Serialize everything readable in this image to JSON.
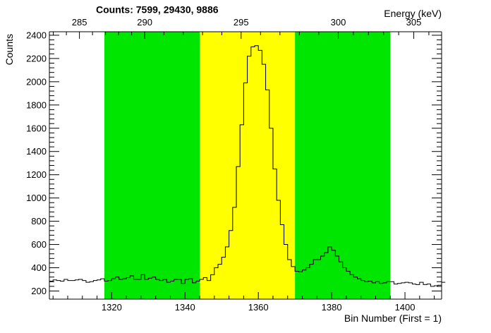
{
  "chart_data": {
    "type": "histogram",
    "title": "Counts:   7599,   29430,   9886",
    "xlabel": "Bin Number (First = 1)",
    "ylabel": "Counts",
    "x2label": "Energy (keV)",
    "xlim": [
      1303,
      1410
    ],
    "ylim": [
      130,
      2430
    ],
    "x_ticks": [
      1320,
      1340,
      1360,
      1380,
      1400
    ],
    "y_ticks": [
      200,
      400,
      600,
      800,
      1000,
      1200,
      1400,
      1600,
      1800,
      2000,
      2200,
      2400
    ],
    "energy_ticks": [
      {
        "label": "285",
        "bin": 1311.2
      },
      {
        "label": "290",
        "bin": 1329.0
      },
      {
        "label": "295",
        "bin": 1355.3
      },
      {
        "label": "300",
        "bin": 1381.8
      },
      {
        "label": "305",
        "bin": 1402.4
      }
    ],
    "regions": [
      {
        "name": "background-left",
        "x_start": 1318,
        "x_end": 1344,
        "color": "#00e600"
      },
      {
        "name": "peak",
        "x_start": 1344,
        "x_end": 1370,
        "color": "#ffff00"
      },
      {
        "name": "background-right",
        "x_start": 1370,
        "x_end": 1396,
        "color": "#00e600"
      }
    ],
    "bins_start": 1303,
    "bin_width": 1,
    "values": [
      285,
      295,
      290,
      285,
      300,
      290,
      290,
      295,
      300,
      290,
      275,
      280,
      290,
      295,
      305,
      285,
      290,
      305,
      320,
      300,
      305,
      315,
      330,
      300,
      300,
      340,
      300,
      310,
      320,
      300,
      290,
      300,
      275,
      285,
      300,
      300,
      265,
      300,
      305,
      270,
      285,
      300,
      315,
      290,
      340,
      400,
      430,
      490,
      580,
      720,
      920,
      1270,
      1630,
      1990,
      2220,
      2300,
      2310,
      2270,
      2150,
      1930,
      1600,
      1250,
      980,
      770,
      600,
      470,
      410,
      370,
      365,
      380,
      400,
      430,
      470,
      470,
      500,
      530,
      580,
      550,
      500,
      450,
      400,
      370,
      340,
      320,
      305,
      290,
      280,
      285,
      270,
      280,
      265,
      270,
      280,
      280,
      260,
      265,
      270,
      275,
      270,
      260,
      255,
      275,
      255,
      260,
      240,
      245,
      250,
      275
    ],
    "line_color": "#000000",
    "grid": false,
    "legend": "none"
  }
}
